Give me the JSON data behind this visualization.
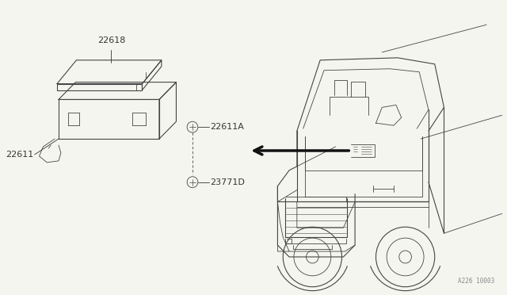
{
  "bg_color": "#f5f5f0",
  "line_color": "#444444",
  "arrow_color": "#111111",
  "text_color": "#333333",
  "ref_code": "A226 10003",
  "figsize": [
    6.4,
    3.72
  ],
  "dpi": 100
}
